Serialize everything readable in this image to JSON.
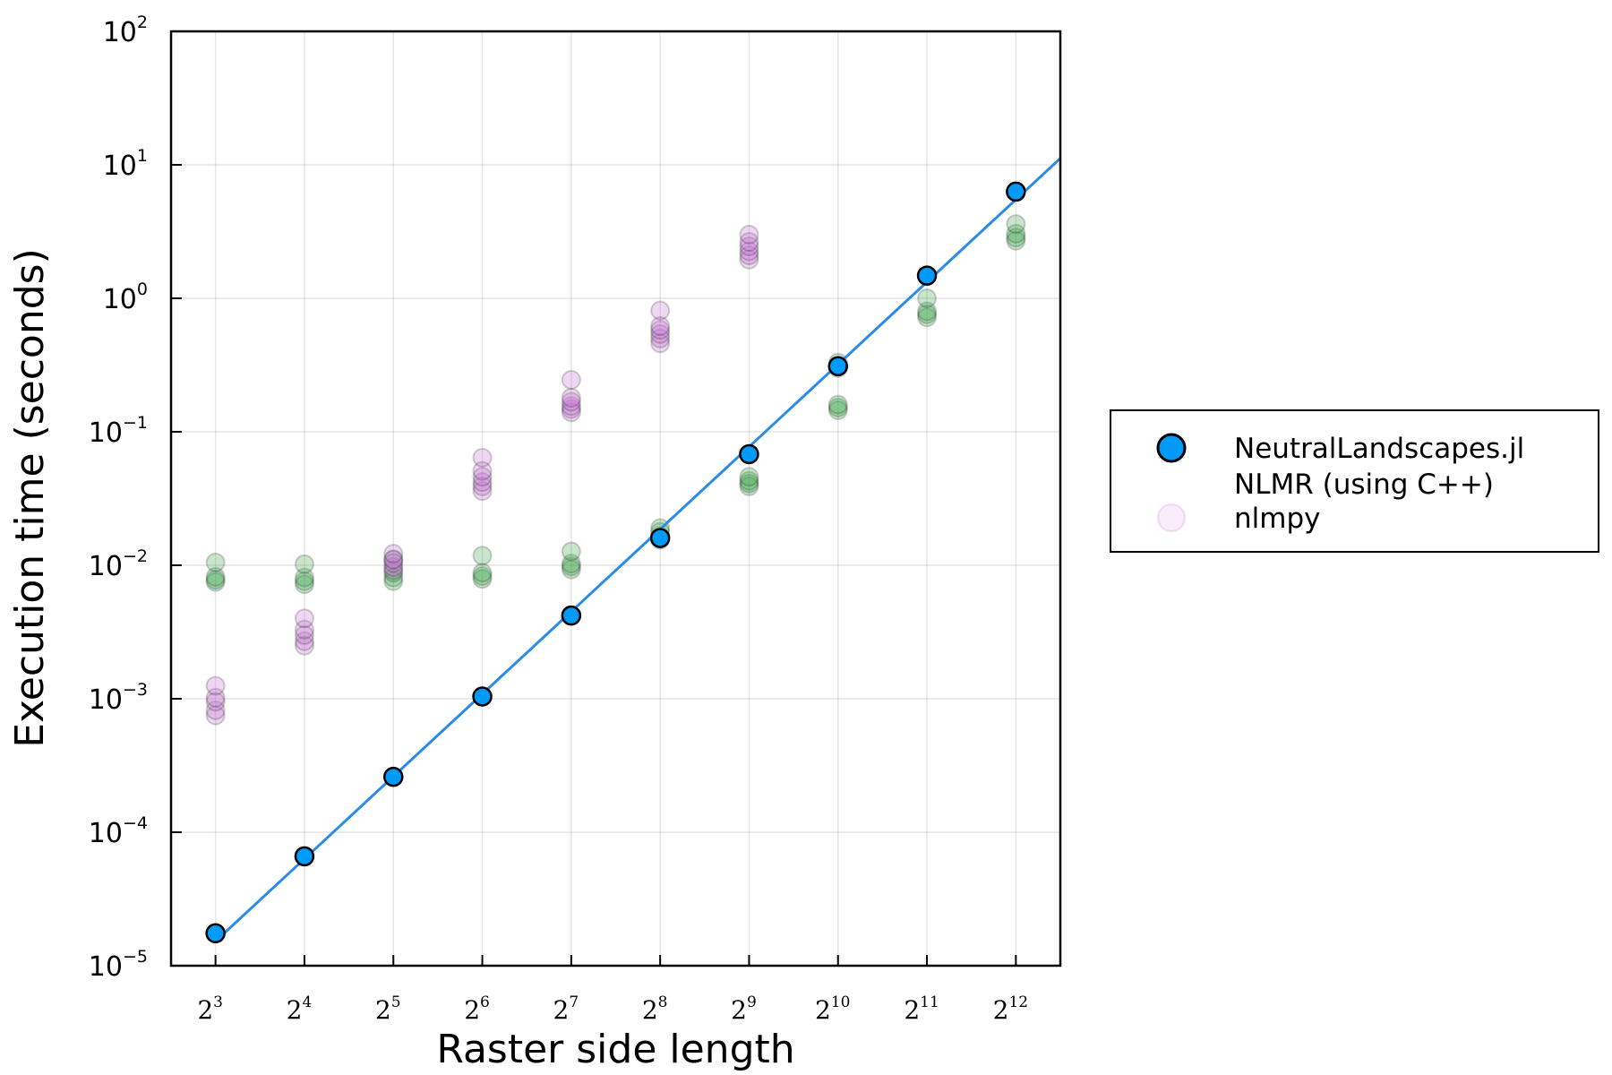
{
  "chart_data": {
    "type": "scatter",
    "xlabel": "Raster side length",
    "ylabel": "Execution time (seconds)",
    "x_scale": "log2",
    "y_scale": "log10",
    "xlim": [
      2.5,
      12.5
    ],
    "ylim_exponents": [
      -5,
      2
    ],
    "x_ticks": [
      {
        "base": "2",
        "exp": "3",
        "value": 3
      },
      {
        "base": "2",
        "exp": "4",
        "value": 4
      },
      {
        "base": "2",
        "exp": "5",
        "value": 5
      },
      {
        "base": "2",
        "exp": "6",
        "value": 6
      },
      {
        "base": "2",
        "exp": "7",
        "value": 7
      },
      {
        "base": "2",
        "exp": "8",
        "value": 8
      },
      {
        "base": "2",
        "exp": "9",
        "value": 9
      },
      {
        "base": "2",
        "exp": "10",
        "value": 10
      },
      {
        "base": "2",
        "exp": "11",
        "value": 11
      },
      {
        "base": "2",
        "exp": "12",
        "value": 12
      }
    ],
    "y_ticks": [
      {
        "base": "10",
        "exp": "−5",
        "value": -5
      },
      {
        "base": "10",
        "exp": "−4",
        "value": -4
      },
      {
        "base": "10",
        "exp": "−3",
        "value": -3
      },
      {
        "base": "10",
        "exp": "−2",
        "value": -2
      },
      {
        "base": "10",
        "exp": "−1",
        "value": -1
      },
      {
        "base": "10",
        "exp": "0",
        "value": 0
      },
      {
        "base": "10",
        "exp": "1",
        "value": 1
      },
      {
        "base": "10",
        "exp": "2",
        "value": 2
      }
    ],
    "grid": true,
    "legend_position": "right",
    "series": [
      {
        "name": "NeutralLandscapes.jl",
        "color": "#009af9",
        "marker": "circle",
        "line": true,
        "points": [
          [
            3,
            1.75e-05
          ],
          [
            4,
            6.6e-05
          ],
          [
            5,
            0.00026
          ],
          [
            6,
            0.00104
          ],
          [
            7,
            0.0042
          ],
          [
            8,
            0.016
          ],
          [
            9,
            0.068
          ],
          [
            10,
            0.31
          ],
          [
            11,
            1.48
          ],
          [
            12,
            6.3
          ]
        ]
      },
      {
        "name": "NLMR (using C++)",
        "color": "#3da44d",
        "marker": "circle",
        "points": [
          [
            3,
            0.0075
          ],
          [
            3,
            0.0078
          ],
          [
            3,
            0.0082
          ],
          [
            3,
            0.0105
          ],
          [
            4,
            0.0072
          ],
          [
            4,
            0.0076
          ],
          [
            4,
            0.0081
          ],
          [
            4,
            0.0102
          ],
          [
            5,
            0.0076
          ],
          [
            5,
            0.0081
          ],
          [
            5,
            0.0088
          ],
          [
            5,
            0.0111
          ],
          [
            6,
            0.0079
          ],
          [
            6,
            0.0083
          ],
          [
            6,
            0.0088
          ],
          [
            6,
            0.0118
          ],
          [
            7,
            0.0093
          ],
          [
            7,
            0.0098
          ],
          [
            7,
            0.0103
          ],
          [
            7,
            0.0127
          ],
          [
            8,
            0.0155
          ],
          [
            8,
            0.0165
          ],
          [
            8,
            0.0178
          ],
          [
            8,
            0.019
          ],
          [
            9,
            0.039
          ],
          [
            9,
            0.041
          ],
          [
            9,
            0.043
          ],
          [
            9,
            0.046
          ],
          [
            10,
            0.145
          ],
          [
            10,
            0.152
          ],
          [
            10,
            0.16
          ],
          [
            10,
            0.3
          ],
          [
            10,
            0.33
          ],
          [
            11,
            0.72
          ],
          [
            11,
            0.76
          ],
          [
            11,
            0.8
          ],
          [
            11,
            1.0
          ],
          [
            12,
            2.7
          ],
          [
            12,
            2.85
          ],
          [
            12,
            3.05
          ],
          [
            12,
            3.6
          ]
        ]
      },
      {
        "name": "nlmpy",
        "color": "#c271d2",
        "marker": "circle",
        "points": [
          [
            3,
            0.00075
          ],
          [
            3,
            0.00082
          ],
          [
            3,
            0.00095
          ],
          [
            3,
            0.00102
          ],
          [
            3,
            0.00125
          ],
          [
            4,
            0.0025
          ],
          [
            4,
            0.0027
          ],
          [
            4,
            0.003
          ],
          [
            4,
            0.0033
          ],
          [
            4,
            0.004
          ],
          [
            5,
            0.0092
          ],
          [
            5,
            0.0097
          ],
          [
            5,
            0.0104
          ],
          [
            5,
            0.011
          ],
          [
            5,
            0.0122
          ],
          [
            6,
            0.036
          ],
          [
            6,
            0.039
          ],
          [
            6,
            0.042
          ],
          [
            6,
            0.046
          ],
          [
            6,
            0.051
          ],
          [
            6,
            0.064
          ],
          [
            7,
            0.14
          ],
          [
            7,
            0.148
          ],
          [
            7,
            0.156
          ],
          [
            7,
            0.168
          ],
          [
            7,
            0.18
          ],
          [
            7,
            0.245
          ],
          [
            8,
            0.46
          ],
          [
            8,
            0.5
          ],
          [
            8,
            0.54
          ],
          [
            8,
            0.58
          ],
          [
            8,
            0.62
          ],
          [
            8,
            0.81
          ],
          [
            9,
            1.95
          ],
          [
            9,
            2.1
          ],
          [
            9,
            2.25
          ],
          [
            9,
            2.45
          ],
          [
            9,
            2.65
          ],
          [
            9,
            3.0
          ]
        ]
      }
    ]
  }
}
